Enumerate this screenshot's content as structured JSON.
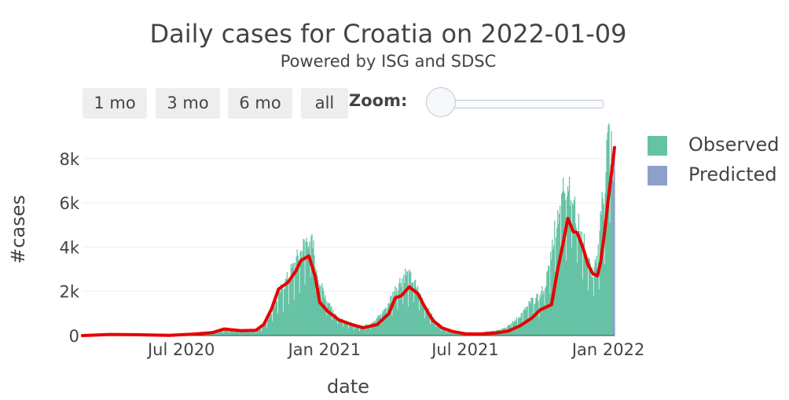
{
  "title": "Daily cases for Croatia on 2022-01-09",
  "subtitle": "Powered by ISG and SDSC",
  "range_selector": {
    "buttons": [
      "1 mo",
      "3 mo",
      "6 mo",
      "all"
    ],
    "zoom_label": "Zoom:"
  },
  "legend": {
    "observed": "Observed",
    "predicted": "Predicted"
  },
  "colors": {
    "observed": "#66c2a5",
    "predicted": "#8da0cb",
    "trend": "#e80000",
    "grid": "#eeeeee"
  },
  "chart_data": {
    "type": "bar",
    "title": "Daily cases for Croatia on 2022-01-09",
    "subtitle": "Powered by ISG and SDSC",
    "xlabel": "date",
    "ylabel": "#cases",
    "x_range": [
      "2020-02-25",
      "2022-01-09"
    ],
    "ylim": [
      0,
      9200
    ],
    "x_ticks": [
      {
        "date": "2020-07-01",
        "label": "Jul 2020"
      },
      {
        "date": "2021-01-01",
        "label": "Jan 2021"
      },
      {
        "date": "2021-07-01",
        "label": "Jul 2021"
      },
      {
        "date": "2022-01-01",
        "label": "Jan 2022"
      }
    ],
    "y_ticks": [
      {
        "value": 0,
        "label": "0"
      },
      {
        "value": 2000,
        "label": "2k"
      },
      {
        "value": 4000,
        "label": "4k"
      },
      {
        "value": 6000,
        "label": "6k"
      },
      {
        "value": 8000,
        "label": "8k"
      }
    ],
    "grid": true,
    "legend_position": "top-right",
    "series": [
      {
        "name": "Observed",
        "kind": "bar",
        "points": [
          [
            "2020-02-25",
            0
          ],
          [
            "2020-03-20",
            60
          ],
          [
            "2020-04-15",
            80
          ],
          [
            "2020-05-10",
            20
          ],
          [
            "2020-06-01",
            10
          ],
          [
            "2020-06-20",
            40
          ],
          [
            "2020-07-05",
            90
          ],
          [
            "2020-07-20",
            110
          ],
          [
            "2020-08-05",
            160
          ],
          [
            "2020-08-20",
            250
          ],
          [
            "2020-09-05",
            260
          ],
          [
            "2020-09-20",
            230
          ],
          [
            "2020-10-05",
            230
          ],
          [
            "2020-10-15",
            450
          ],
          [
            "2020-10-25",
            1100
          ],
          [
            "2020-11-05",
            2000
          ],
          [
            "2020-11-15",
            2600
          ],
          [
            "2020-11-25",
            3300
          ],
          [
            "2020-12-05",
            4000
          ],
          [
            "2020-12-12",
            4500
          ],
          [
            "2020-12-18",
            3900
          ],
          [
            "2020-12-25",
            2500
          ],
          [
            "2021-01-05",
            1600
          ],
          [
            "2021-01-15",
            1000
          ],
          [
            "2021-01-25",
            650
          ],
          [
            "2021-02-05",
            500
          ],
          [
            "2021-02-15",
            420
          ],
          [
            "2021-02-25",
            480
          ],
          [
            "2021-03-05",
            650
          ],
          [
            "2021-03-15",
            950
          ],
          [
            "2021-03-25",
            1500
          ],
          [
            "2021-04-05",
            2300
          ],
          [
            "2021-04-15",
            2800
          ],
          [
            "2021-04-25",
            2500
          ],
          [
            "2021-05-05",
            1800
          ],
          [
            "2021-05-15",
            1100
          ],
          [
            "2021-05-25",
            600
          ],
          [
            "2021-06-05",
            300
          ],
          [
            "2021-06-20",
            150
          ],
          [
            "2021-07-05",
            100
          ],
          [
            "2021-07-20",
            130
          ],
          [
            "2021-08-05",
            200
          ],
          [
            "2021-08-20",
            350
          ],
          [
            "2021-09-01",
            600
          ],
          [
            "2021-09-15",
            1100
          ],
          [
            "2021-09-25",
            1600
          ],
          [
            "2021-10-05",
            1700
          ],
          [
            "2021-10-15",
            2700
          ],
          [
            "2021-10-25",
            5000
          ],
          [
            "2021-11-05",
            6800
          ],
          [
            "2021-11-12",
            7000
          ],
          [
            "2021-11-20",
            5500
          ],
          [
            "2021-11-28",
            4600
          ],
          [
            "2021-12-05",
            3500
          ],
          [
            "2021-12-12",
            2800
          ],
          [
            "2021-12-18",
            3300
          ],
          [
            "2021-12-22",
            5500
          ],
          [
            "2021-12-27",
            6500
          ],
          [
            "2021-12-30",
            8500
          ],
          [
            "2022-01-02",
            9000
          ],
          [
            "2022-01-06",
            8200
          ]
        ]
      },
      {
        "name": "Predicted",
        "kind": "bar",
        "points": [
          [
            "2022-01-07",
            7000
          ],
          [
            "2022-01-08",
            7500
          ],
          [
            "2022-01-09",
            8200
          ]
        ]
      },
      {
        "name": "",
        "kind": "line",
        "points": [
          [
            "2020-02-25",
            0
          ],
          [
            "2020-04-01",
            50
          ],
          [
            "2020-05-01",
            40
          ],
          [
            "2020-06-15",
            10
          ],
          [
            "2020-07-15",
            60
          ],
          [
            "2020-08-10",
            130
          ],
          [
            "2020-08-25",
            300
          ],
          [
            "2020-09-15",
            220
          ],
          [
            "2020-10-05",
            240
          ],
          [
            "2020-10-15",
            500
          ],
          [
            "2020-10-25",
            1200
          ],
          [
            "2020-11-03",
            2100
          ],
          [
            "2020-11-15",
            2400
          ],
          [
            "2020-11-25",
            2900
          ],
          [
            "2020-12-02",
            3400
          ],
          [
            "2020-12-12",
            3600
          ],
          [
            "2020-12-20",
            2700
          ],
          [
            "2020-12-26",
            1500
          ],
          [
            "2021-01-05",
            1100
          ],
          [
            "2021-01-20",
            700
          ],
          [
            "2021-02-05",
            500
          ],
          [
            "2021-02-20",
            350
          ],
          [
            "2021-03-10",
            500
          ],
          [
            "2021-03-25",
            1000
          ],
          [
            "2021-04-02",
            1700
          ],
          [
            "2021-04-10",
            1800
          ],
          [
            "2021-04-20",
            2200
          ],
          [
            "2021-05-01",
            1900
          ],
          [
            "2021-05-10",
            1300
          ],
          [
            "2021-05-20",
            700
          ],
          [
            "2021-06-01",
            350
          ],
          [
            "2021-06-15",
            180
          ],
          [
            "2021-07-01",
            80
          ],
          [
            "2021-07-20",
            70
          ],
          [
            "2021-08-10",
            120
          ],
          [
            "2021-08-25",
            200
          ],
          [
            "2021-09-10",
            450
          ],
          [
            "2021-09-25",
            800
          ],
          [
            "2021-10-05",
            1150
          ],
          [
            "2021-10-20",
            1400
          ],
          [
            "2021-10-28",
            3000
          ],
          [
            "2021-11-04",
            4200
          ],
          [
            "2021-11-10",
            5300
          ],
          [
            "2021-11-17",
            4700
          ],
          [
            "2021-11-22",
            4650
          ],
          [
            "2021-11-30",
            3900
          ],
          [
            "2021-12-06",
            3200
          ],
          [
            "2021-12-12",
            2800
          ],
          [
            "2021-12-18",
            2700
          ],
          [
            "2021-12-22",
            3300
          ],
          [
            "2021-12-27",
            4600
          ],
          [
            "2022-01-01",
            6200
          ],
          [
            "2022-01-05",
            7300
          ],
          [
            "2022-01-09",
            8500
          ]
        ]
      }
    ]
  }
}
